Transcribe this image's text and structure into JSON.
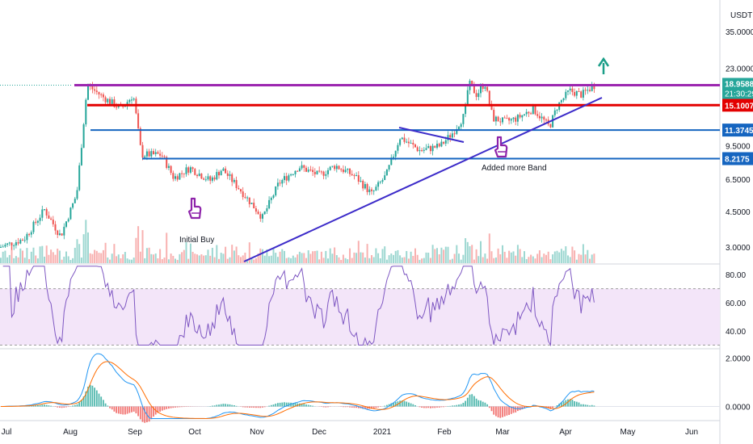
{
  "chart_data": {
    "type": "line",
    "price_panel": {
      "currency": "USDT",
      "last_price": "18.9588",
      "countdown": "21:30:29",
      "y_ticks": [
        "35.0000",
        "23.0000",
        "9.5000",
        "6.5000",
        "4.5000",
        "3.0000"
      ],
      "ylim": [
        2.5,
        50
      ],
      "log_scale": true,
      "level_tags": [
        {
          "label": "15.1007",
          "value": 15.1007,
          "color": "#e30000"
        },
        {
          "label": "11.3745",
          "value": 11.3745,
          "color": "#1565c0"
        },
        {
          "label": "8.2175",
          "value": 8.2175,
          "color": "#1565c0"
        }
      ],
      "resistance_level": 18.9588,
      "annotations": [
        "Initial Buy",
        "Added more Band"
      ]
    },
    "rsi_panel": {
      "y_ticks": [
        "80.00",
        "60.00",
        "40.00"
      ],
      "ylim": [
        28,
        87
      ],
      "band": [
        30,
        70
      ]
    },
    "macd_panel": {
      "y_ticks": [
        "2.0000",
        "0.0000"
      ],
      "ylim": [
        -0.55,
        2.35
      ]
    },
    "x_labels": [
      "Jul",
      "Aug",
      "Sep",
      "Oct",
      "Nov",
      "Dec",
      "2021",
      "Feb",
      "Mar",
      "Apr",
      "May",
      "Jun"
    ]
  },
  "colors": {
    "up": "#26a69a",
    "down": "#ef5350",
    "resistance": "#9c27b0",
    "support_red": "#e30000",
    "support_blue": "#1565c0",
    "trendline": "#3c2bc9",
    "rsi_line": "#7e57c2",
    "rsi_band": "#f3e5f9",
    "macd_line": "#2196f3",
    "signal_line": "#ff6d00",
    "arrow": "#1b9e88"
  }
}
